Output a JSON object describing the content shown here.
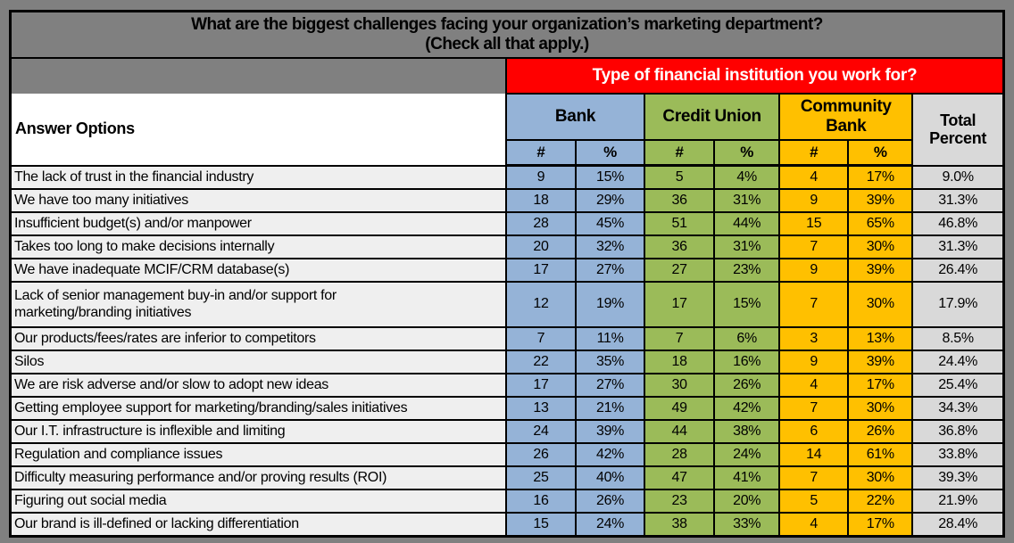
{
  "title_line1": "What are the biggest challenges facing your organization’s marketing department?",
  "title_line2": "(Check all that apply.)",
  "banner": "Type of financial institution you work for?",
  "headers": {
    "answer_options": "Answer Options",
    "bank": "Bank",
    "credit_union": "Credit Union",
    "community_bank": "Community Bank",
    "total_percent": "Total Percent",
    "count_symbol": "#",
    "percent_symbol": "%"
  },
  "colors": {
    "page_background": "#808080",
    "banner_red": "#FF0000",
    "bank_blue": "#95B3D7",
    "credit_union_green": "#9BBB59",
    "community_bank_orange": "#FFC000",
    "total_gray": "#D9D9D9",
    "answer_row_bg": "#EFEFEF",
    "border_black": "#000000"
  },
  "chart_data": {
    "type": "table",
    "title": "What are the biggest challenges facing your organization’s marketing department? (Check all that apply.)",
    "column_groups": [
      {
        "name": "Bank",
        "sub": [
          "#",
          "%"
        ]
      },
      {
        "name": "Credit Union",
        "sub": [
          "#",
          "%"
        ]
      },
      {
        "name": "Community Bank",
        "sub": [
          "#",
          "%"
        ]
      },
      {
        "name": "Total Percent",
        "sub": []
      }
    ],
    "rows": [
      {
        "answer": "The lack of trust in the financial industry",
        "cells": [
          "9",
          "15%",
          "5",
          "4%",
          "4",
          "17%",
          "9.0%"
        ]
      },
      {
        "answer": "We have too many initiatives",
        "cells": [
          "18",
          "29%",
          "36",
          "31%",
          "9",
          "39%",
          "31.3%"
        ]
      },
      {
        "answer": "Insufficient budget(s) and/or manpower",
        "cells": [
          "28",
          "45%",
          "51",
          "44%",
          "15",
          "65%",
          "46.8%"
        ]
      },
      {
        "answer": "Takes too long to make decisions internally",
        "cells": [
          "20",
          "32%",
          "36",
          "31%",
          "7",
          "30%",
          "31.3%"
        ]
      },
      {
        "answer": "We have inadequate MCIF/CRM database(s)",
        "cells": [
          "17",
          "27%",
          "27",
          "23%",
          "9",
          "39%",
          "26.4%"
        ]
      },
      {
        "answer": "Lack of senior management buy-in and/or support for\nmarketing/branding initiatives",
        "tall": true,
        "cells": [
          "12",
          "19%",
          "17",
          "15%",
          "7",
          "30%",
          "17.9%"
        ]
      },
      {
        "answer": "Our products/fees/rates are inferior to competitors",
        "cells": [
          "7",
          "11%",
          "7",
          "6%",
          "3",
          "13%",
          "8.5%"
        ]
      },
      {
        "answer": "Silos",
        "cells": [
          "22",
          "35%",
          "18",
          "16%",
          "9",
          "39%",
          "24.4%"
        ]
      },
      {
        "answer": "We are risk adverse and/or slow to adopt new ideas",
        "cells": [
          "17",
          "27%",
          "30",
          "26%",
          "4",
          "17%",
          "25.4%"
        ]
      },
      {
        "answer": "Getting employee support for marketing/branding/sales initiatives",
        "cells": [
          "13",
          "21%",
          "49",
          "42%",
          "7",
          "30%",
          "34.3%"
        ]
      },
      {
        "answer": "Our I.T. infrastructure is inflexible and limiting",
        "cells": [
          "24",
          "39%",
          "44",
          "38%",
          "6",
          "26%",
          "36.8%"
        ]
      },
      {
        "answer": "Regulation and compliance issues",
        "cells": [
          "26",
          "42%",
          "28",
          "24%",
          "14",
          "61%",
          "33.8%"
        ]
      },
      {
        "answer": "Difficulty measuring performance and/or proving results (ROI)",
        "cells": [
          "25",
          "40%",
          "47",
          "41%",
          "7",
          "30%",
          "39.3%"
        ]
      },
      {
        "answer": "Figuring out social media",
        "cells": [
          "16",
          "26%",
          "23",
          "20%",
          "5",
          "22%",
          "21.9%"
        ]
      },
      {
        "answer": "Our brand is ill-defined or lacking differentiation",
        "cells": [
          "15",
          "24%",
          "38",
          "33%",
          "4",
          "17%",
          "28.4%"
        ]
      }
    ]
  }
}
